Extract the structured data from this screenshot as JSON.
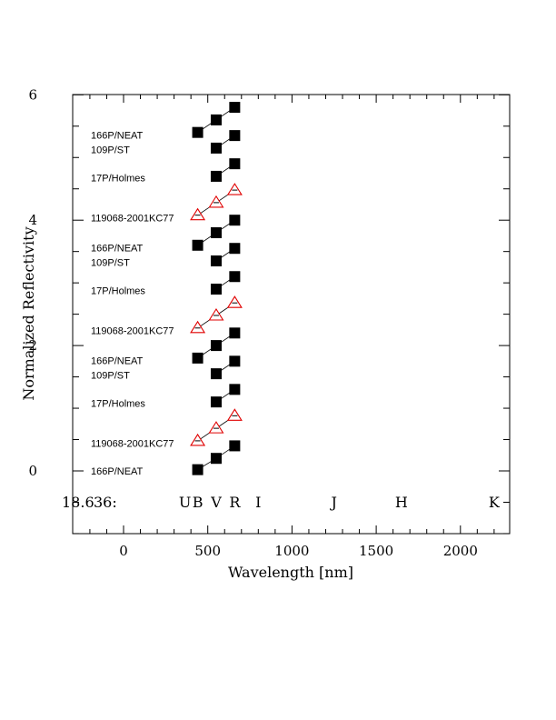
{
  "chart_data": {
    "type": "scatter",
    "xlabel": "Wavelength [nm]",
    "ylabel": "Normalized Reflectivity",
    "xlim": [
      -300,
      2300
    ],
    "ylim": [
      -1,
      6
    ],
    "xticks": [
      0,
      500,
      1000,
      1500,
      2000
    ],
    "yticks": [
      0,
      2,
      4,
      6
    ],
    "header_text": [
      "36:",
      "18.6"
    ],
    "band_labels": [
      {
        "label": "U",
        "x": 365
      },
      {
        "label": "B",
        "x": 440
      },
      {
        "label": "V",
        "x": 550
      },
      {
        "label": "R",
        "x": 660
      },
      {
        "label": "I",
        "x": 800
      },
      {
        "label": "J",
        "x": 1250
      },
      {
        "label": "H",
        "x": 1650
      },
      {
        "label": "K",
        "x": 2200
      }
    ],
    "series": [
      {
        "name": "166P/NEAT",
        "marker": "square",
        "x": [
          440,
          550,
          660
        ],
        "y": [
          0.02,
          0.2,
          0.4
        ],
        "yerr": [
          0.08,
          0.04,
          0.03
        ]
      },
      {
        "name": "119068-2001KC77",
        "marker": "triangle",
        "x": [
          440,
          550,
          660
        ],
        "y": [
          0.48,
          0.68,
          0.88
        ],
        "yerr": [
          0.03,
          0.03,
          0.03
        ]
      },
      {
        "name": "17P/Holmes",
        "marker": "square",
        "x": [
          440,
          550,
          660
        ],
        "y": [
          null,
          1.1,
          1.3
        ],
        "yerr": [
          null,
          0.02,
          0.02
        ]
      },
      {
        "name": "109P/ST",
        "marker": "square",
        "x": [
          440,
          550,
          660
        ],
        "y": [
          null,
          1.55,
          1.75
        ],
        "yerr": [
          null,
          0.02,
          0.02
        ]
      },
      {
        "name": "166P/NEAT",
        "marker": "square",
        "x": [
          440,
          550,
          660
        ],
        "y": [
          1.8,
          2.0,
          2.2
        ],
        "yerr": [
          0.08,
          0.04,
          0.03
        ]
      },
      {
        "name": "119068-2001KC77",
        "marker": "triangle",
        "x": [
          440,
          550,
          660
        ],
        "y": [
          2.28,
          2.48,
          2.68
        ],
        "yerr": [
          0.03,
          0.03,
          0.03
        ]
      },
      {
        "name": "17P/Holmes",
        "marker": "square",
        "x": [
          440,
          550,
          660
        ],
        "y": [
          null,
          2.9,
          3.1
        ],
        "yerr": [
          null,
          0.02,
          0.02
        ]
      },
      {
        "name": "109P/ST",
        "marker": "square",
        "x": [
          440,
          550,
          660
        ],
        "y": [
          null,
          3.35,
          3.55
        ],
        "yerr": [
          null,
          0.02,
          0.02
        ]
      },
      {
        "name": "166P/NEAT",
        "marker": "square",
        "x": [
          440,
          550,
          660
        ],
        "y": [
          3.6,
          3.8,
          4.0
        ],
        "yerr": [
          0.08,
          0.04,
          0.03
        ]
      },
      {
        "name": "119068-2001KC77",
        "marker": "triangle",
        "x": [
          440,
          550,
          660
        ],
        "y": [
          4.08,
          4.28,
          4.48
        ],
        "yerr": [
          0.03,
          0.03,
          0.03
        ]
      },
      {
        "name": "17P/Holmes",
        "marker": "square",
        "x": [
          440,
          550,
          660
        ],
        "y": [
          null,
          4.7,
          4.9
        ],
        "yerr": [
          null,
          0.02,
          0.02
        ]
      },
      {
        "name": "109P/ST",
        "marker": "square",
        "x": [
          440,
          550,
          660
        ],
        "y": [
          null,
          5.15,
          5.35
        ],
        "yerr": [
          null,
          0.02,
          0.02
        ]
      },
      {
        "name": "166P/NEAT",
        "marker": "square",
        "x": [
          440,
          550,
          660
        ],
        "y": [
          5.4,
          5.6,
          5.8
        ],
        "yerr": [
          0.08,
          0.04,
          0.03
        ]
      }
    ],
    "object_labels": [
      {
        "text": "166P/NEAT",
        "y": 0.0
      },
      {
        "text": "119068-2001KC77",
        "y": 0.44
      },
      {
        "text": "17P/Holmes",
        "y": 1.08
      },
      {
        "text": "109P/ST",
        "y": 1.53
      },
      {
        "text": "166P/NEAT",
        "y": 1.76
      },
      {
        "text": "119068-2001KC77",
        "y": 2.24
      },
      {
        "text": "17P/Holmes",
        "y": 2.88
      },
      {
        "text": "109P/ST",
        "y": 3.33
      },
      {
        "text": "166P/NEAT",
        "y": 3.56
      },
      {
        "text": "119068-2001KC77",
        "y": 4.04
      },
      {
        "text": "17P/Holmes",
        "y": 4.68
      },
      {
        "text": "109P/ST",
        "y": 5.13
      },
      {
        "text": "166P/NEAT",
        "y": 5.36
      }
    ],
    "colors": {
      "square": "#000000",
      "triangle_edge": "#e00000"
    },
    "grid": false,
    "legend": "none"
  }
}
